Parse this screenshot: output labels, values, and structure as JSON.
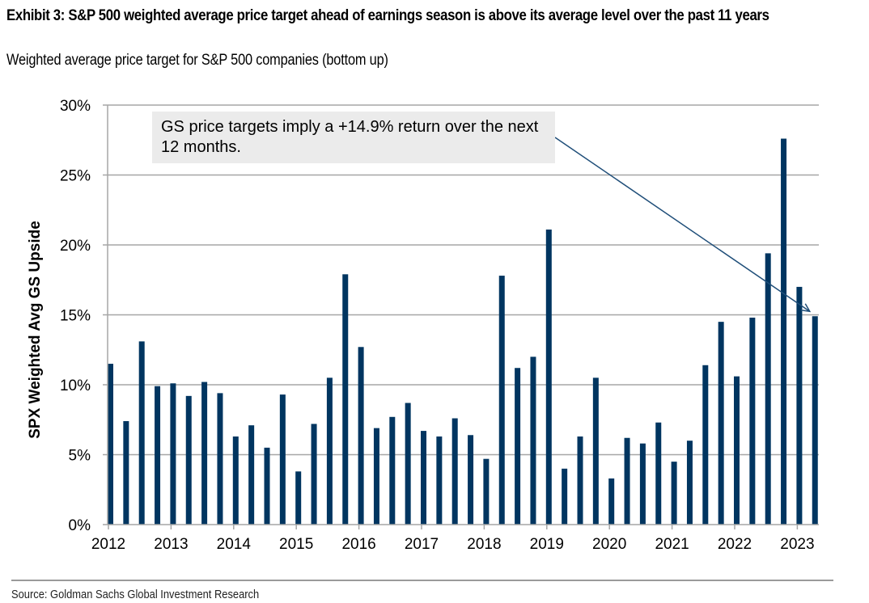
{
  "header": {
    "title": "Exhibit 3: S&P 500 weighted average price target ahead of earnings season is above its average level over the past 11 years",
    "subtitle": "Weighted average price target for S&P 500 companies (bottom up)"
  },
  "footer": {
    "source": "Source: Goldman Sachs Global Investment Research"
  },
  "chart_data": {
    "type": "bar",
    "title": "S&P 500 weighted average price target ahead of earnings season is above its average level over the past 11 years",
    "subtitle": "Weighted average price target for S&P 500 companies (bottom up)",
    "xlabel": "",
    "ylabel": "SPX Weighted Avg GS Upside",
    "ylim": [
      0,
      30
    ],
    "yticks": [
      0,
      5,
      10,
      15,
      20,
      25,
      30
    ],
    "ytick_labels": [
      "0%",
      "5%",
      "10%",
      "15%",
      "20%",
      "25%",
      "30%"
    ],
    "xtick_labels": [
      "2012",
      "2013",
      "2014",
      "2015",
      "2016",
      "2017",
      "2018",
      "2019",
      "2020",
      "2021",
      "2022",
      "2023"
    ],
    "grid": true,
    "bar_color": "#003560",
    "categories": [
      "2012 Q1",
      "2012 Q2",
      "2012 Q3",
      "2012 Q4",
      "2013 Q1",
      "2013 Q2",
      "2013 Q3",
      "2013 Q4",
      "2014 Q1",
      "2014 Q2",
      "2014 Q3",
      "2014 Q4",
      "2015 Q1",
      "2015 Q2",
      "2015 Q3",
      "2015 Q4",
      "2016 Q1",
      "2016 Q2",
      "2016 Q3",
      "2016 Q4",
      "2017 Q1",
      "2017 Q2",
      "2017 Q3",
      "2017 Q4",
      "2018 Q1",
      "2018 Q2",
      "2018 Q3",
      "2018 Q4",
      "2019 Q1",
      "2019 Q2",
      "2019 Q3",
      "2019 Q4",
      "2020 Q1",
      "2020 Q2",
      "2020 Q3",
      "2020 Q4",
      "2021 Q1",
      "2021 Q2",
      "2021 Q3",
      "2021 Q4",
      "2022 Q1",
      "2022 Q2",
      "2022 Q3",
      "2022 Q4",
      "2023 Q1",
      "2023 Q2"
    ],
    "values": [
      11.5,
      7.4,
      13.1,
      9.9,
      10.1,
      9.2,
      10.2,
      9.4,
      6.3,
      7.1,
      5.5,
      9.3,
      3.8,
      7.2,
      10.5,
      17.9,
      12.7,
      6.9,
      7.7,
      8.7,
      6.7,
      6.3,
      7.6,
      6.4,
      4.7,
      17.8,
      11.2,
      12.0,
      21.1,
      4.0,
      6.3,
      10.5,
      3.3,
      6.2,
      5.8,
      7.3,
      4.5,
      6.0,
      11.4,
      14.5,
      10.6,
      14.8,
      19.4,
      27.6,
      17.0,
      14.9
    ],
    "annotations": [
      {
        "text": "GS price targets imply a +14.9% return over the next 12 months.",
        "points_to": "2023 Q2",
        "value": 14.9
      }
    ]
  }
}
